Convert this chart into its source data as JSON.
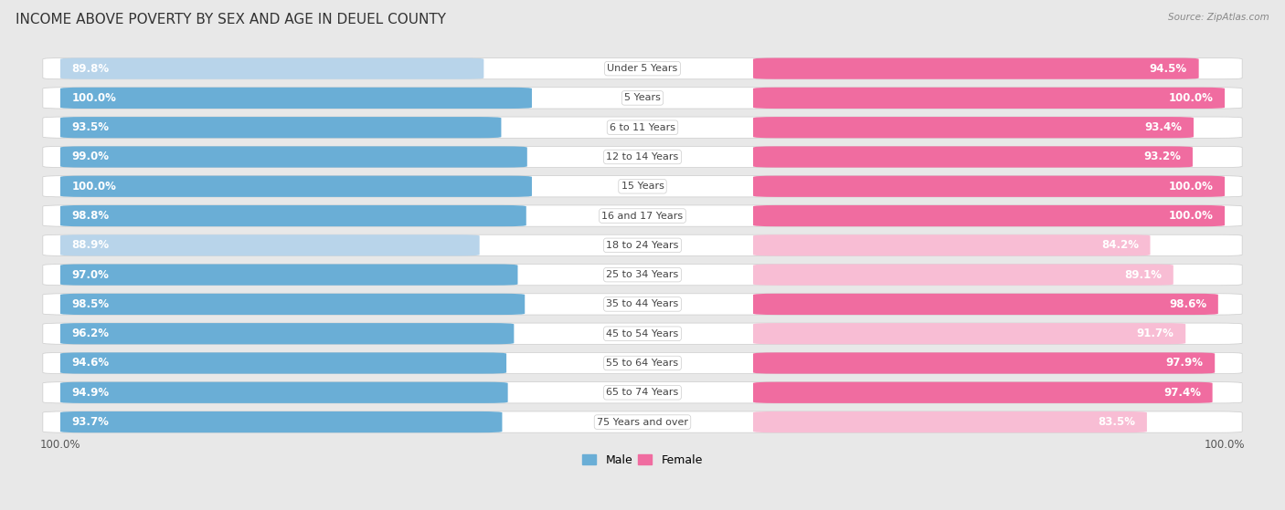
{
  "title": "INCOME ABOVE POVERTY BY SEX AND AGE IN DEUEL COUNTY",
  "source": "Source: ZipAtlas.com",
  "categories": [
    "Under 5 Years",
    "5 Years",
    "6 to 11 Years",
    "12 to 14 Years",
    "15 Years",
    "16 and 17 Years",
    "18 to 24 Years",
    "25 to 34 Years",
    "35 to 44 Years",
    "45 to 54 Years",
    "55 to 64 Years",
    "65 to 74 Years",
    "75 Years and over"
  ],
  "male_values": [
    89.8,
    100.0,
    93.5,
    99.0,
    100.0,
    98.8,
    88.9,
    97.0,
    98.5,
    96.2,
    94.6,
    94.9,
    93.7
  ],
  "female_values": [
    94.5,
    100.0,
    93.4,
    93.2,
    100.0,
    100.0,
    84.2,
    89.1,
    98.6,
    91.7,
    97.9,
    97.4,
    83.5
  ],
  "male_color_full": "#6aaed6",
  "male_color_light": "#b8d4ea",
  "female_color_full": "#f06ca0",
  "female_color_light": "#f8bdd4",
  "row_bg_color": "#e8e8e8",
  "bar_track_color": "#f5f5f5",
  "background_color": "#e8e8e8",
  "outer_bg_color": "#d8d8d8",
  "title_fontsize": 11,
  "label_fontsize": 8.5,
  "legend_fontsize": 9,
  "axis_label_fontsize": 8.5,
  "max_value": 100.0,
  "threshold_full": 92.0
}
